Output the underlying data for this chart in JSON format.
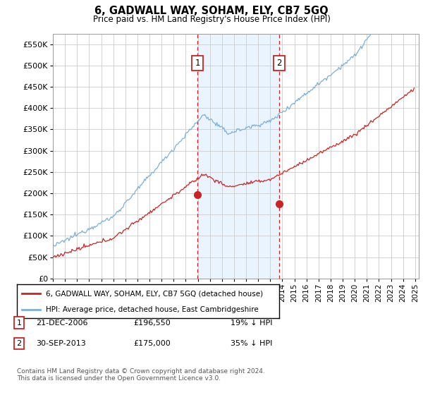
{
  "title": "6, GADWALL WAY, SOHAM, ELY, CB7 5GQ",
  "subtitle": "Price paid vs. HM Land Registry's House Price Index (HPI)",
  "ylim": [
    0,
    575000
  ],
  "yticks": [
    0,
    50000,
    100000,
    150000,
    200000,
    250000,
    300000,
    350000,
    400000,
    450000,
    500000,
    550000
  ],
  "ytick_labels": [
    "£0",
    "£50K",
    "£100K",
    "£150K",
    "£200K",
    "£250K",
    "£300K",
    "£350K",
    "£400K",
    "£450K",
    "£500K",
    "£550K"
  ],
  "hpi_color": "#7ab0d8",
  "price_color": "#cc2222",
  "sale1_year": 2006.97,
  "sale1_price": 196550,
  "sale2_year": 2013.75,
  "sale2_price": 175000,
  "annotation1_label": "1",
  "annotation2_label": "2",
  "legend_line1": "6, GADWALL WAY, SOHAM, ELY, CB7 5GQ (detached house)",
  "legend_line2": "HPI: Average price, detached house, East Cambridgeshire",
  "bg_color": "#ffffff",
  "grid_color": "#cccccc",
  "shade_color": "#ddeeff",
  "footer": "Contains HM Land Registry data © Crown copyright and database right 2024.\nThis data is licensed under the Open Government Licence v3.0."
}
